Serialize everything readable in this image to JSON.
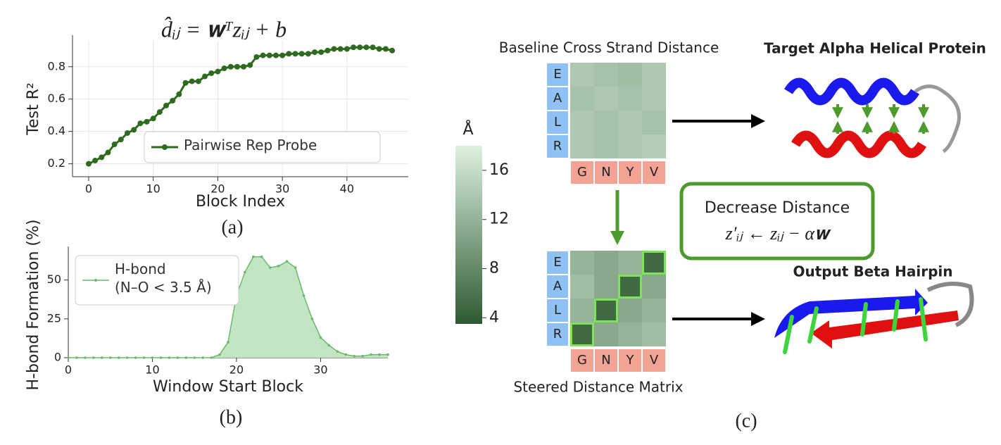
{
  "chart_data": [
    {
      "type": "line",
      "title": "d̂ᵢⱼ = 𝐰ᵀzᵢⱼ + b",
      "caption": "(a)",
      "xlabel": "Block Index",
      "ylabel": "Test R²",
      "x": [
        0,
        1,
        2,
        3,
        4,
        5,
        6,
        7,
        8,
        9,
        10,
        11,
        12,
        13,
        14,
        15,
        16,
        17,
        18,
        19,
        20,
        21,
        22,
        23,
        24,
        25,
        26,
        27,
        28,
        29,
        30,
        31,
        32,
        33,
        34,
        35,
        36,
        37,
        38,
        39,
        40,
        41,
        42,
        43,
        44,
        45,
        46,
        47
      ],
      "series": [
        {
          "name": "Pairwise Rep Probe",
          "color": "#2e6b1f",
          "values": [
            0.2,
            0.22,
            0.24,
            0.27,
            0.32,
            0.35,
            0.39,
            0.41,
            0.45,
            0.46,
            0.48,
            0.52,
            0.56,
            0.59,
            0.63,
            0.7,
            0.71,
            0.71,
            0.74,
            0.76,
            0.77,
            0.79,
            0.8,
            0.8,
            0.8,
            0.81,
            0.86,
            0.87,
            0.87,
            0.87,
            0.87,
            0.88,
            0.88,
            0.88,
            0.88,
            0.89,
            0.89,
            0.9,
            0.91,
            0.91,
            0.91,
            0.92,
            0.92,
            0.92,
            0.92,
            0.91,
            0.91,
            0.9
          ]
        }
      ],
      "xlim": [
        -2.5,
        49.5
      ],
      "ylim": [
        0.12,
        0.96
      ],
      "xticks": [
        0,
        10,
        20,
        30,
        40
      ],
      "yticks": [
        0.2,
        0.4,
        0.6,
        0.8
      ],
      "grid": true,
      "legend": "lower right"
    },
    {
      "type": "area",
      "caption": "(b)",
      "xlabel": "Window Start Block",
      "ylabel": "H-bond Formation (%)",
      "x": [
        0,
        1,
        2,
        3,
        4,
        5,
        6,
        7,
        8,
        9,
        10,
        11,
        12,
        13,
        14,
        15,
        16,
        17,
        18,
        19,
        20,
        21,
        22,
        23,
        24,
        25,
        26,
        27,
        28,
        29,
        30,
        31,
        32,
        33,
        34,
        35,
        36,
        37,
        38
      ],
      "series": [
        {
          "name": "H-bond\n(N–O < 3.5 Å)",
          "color": "#6ab96a",
          "fill": "#c3e5c4",
          "values": [
            0,
            0,
            0,
            0,
            0,
            0,
            0,
            0,
            0,
            0,
            0,
            0,
            0,
            0,
            0,
            0,
            0,
            0,
            2,
            10,
            40,
            55,
            65,
            65,
            58,
            59,
            62,
            58,
            40,
            25,
            13,
            8,
            4,
            2,
            1,
            1,
            2,
            2,
            2
          ]
        }
      ],
      "xlim": [
        0,
        38
      ],
      "ylim": [
        0,
        68
      ],
      "xticks": [
        0,
        10,
        20,
        30
      ],
      "yticks": [
        0,
        25,
        50
      ],
      "grid": false,
      "legend": "upper left"
    }
  ],
  "diagram": {
    "caption": "(c)",
    "colorbar": {
      "label": "Å",
      "lim": [
        3.5,
        18
      ],
      "ticks": [
        4,
        8,
        12,
        16
      ]
    },
    "row_labels": [
      "E",
      "A",
      "L",
      "R"
    ],
    "col_labels": [
      "G",
      "N",
      "Y",
      "V"
    ],
    "baseline": {
      "title": "Baseline Cross Strand Distance",
      "values": [
        [
          14,
          13.5,
          13,
          14
        ],
        [
          13.5,
          14,
          13.5,
          14
        ],
        [
          14,
          13.5,
          14,
          13.5
        ],
        [
          14,
          13.5,
          14,
          14.5
        ]
      ]
    },
    "steered": {
      "title": "Steered Distance Matrix",
      "values": [
        [
          12,
          11,
          12,
          5
        ],
        [
          13,
          11,
          5,
          11
        ],
        [
          12,
          5,
          11,
          12
        ],
        [
          5,
          11,
          12,
          13
        ]
      ]
    },
    "target_title": "Target Alpha Helical Protein",
    "output_title": "Output Beta Hairpin",
    "box": {
      "title": "Decrease Distance",
      "formula": "z′ᵢⱼ ← zᵢⱼ − α𝐰"
    }
  }
}
